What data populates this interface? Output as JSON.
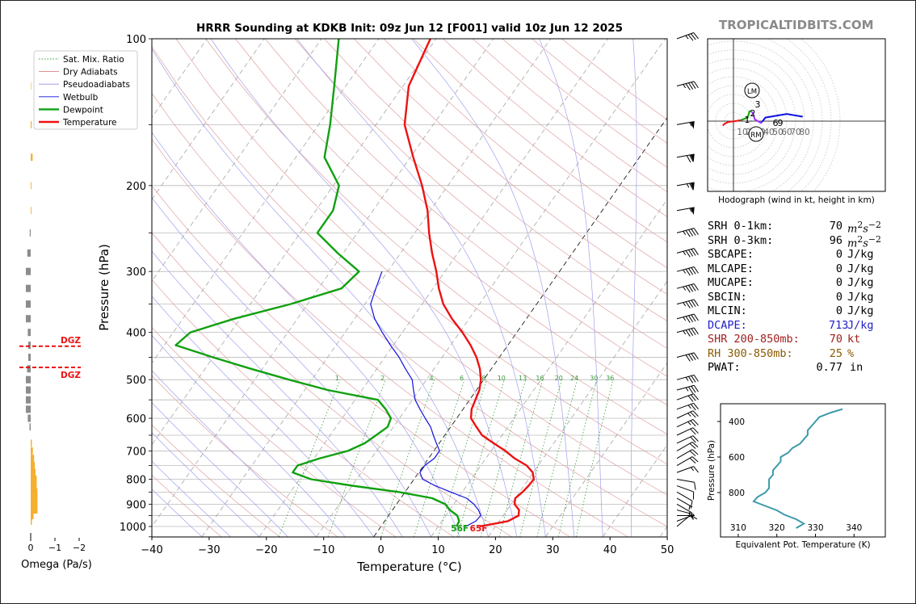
{
  "title": "HRRR Sounding at KDKB Init: 09z Jun 12 [F001] valid 10z Jun 12 2025",
  "watermark": "TROPICALTIDBITS.COM",
  "chart_data": {
    "type": "skew-t",
    "xlabel": "Temperature (°C)",
    "ylabel": "Pressure (hPa)",
    "xlim": [
      -40,
      50
    ],
    "ylim": [
      1050,
      100
    ],
    "log_y": true,
    "x_ticks": [
      "−40",
      "−30",
      "−20",
      "−10",
      "0",
      "10",
      "20",
      "30",
      "40",
      "50"
    ],
    "y_ticks": [
      "100",
      "200",
      "300",
      "400",
      "500",
      "600",
      "700",
      "800",
      "900",
      "1000"
    ],
    "mixing_ratio_labels": [
      "1",
      "2",
      "4",
      "6",
      "8",
      "10",
      "13",
      "16",
      "20",
      "24",
      "30",
      "36"
    ],
    "legend": {
      "position": "upper-left",
      "items": [
        {
          "label": "Sat. Mix. Ratio",
          "color": "#3a9a3a",
          "style": "dotted"
        },
        {
          "label": "Dry Adiabats",
          "color": "#e08080",
          "style": "solid"
        },
        {
          "label": "Pseudoadiabats",
          "color": "#9090e0",
          "style": "solid"
        },
        {
          "label": "Wetbulb",
          "color": "#1010e0",
          "style": "solid"
        },
        {
          "label": "Dewpoint",
          "color": "#10a010",
          "style": "solid"
        },
        {
          "label": "Temperature",
          "color": "#ee1111",
          "style": "solid"
        }
      ]
    },
    "series": [
      {
        "name": "Temperature",
        "color": "#ee1111",
        "profile": [
          [
            1000,
            17.2
          ],
          [
            975,
            21.5
          ],
          [
            950,
            22.7
          ],
          [
            925,
            22.1
          ],
          [
            900,
            20.6
          ],
          [
            875,
            20.0
          ],
          [
            850,
            20.5
          ],
          [
            825,
            20.8
          ],
          [
            800,
            20.9
          ],
          [
            775,
            19.9
          ],
          [
            750,
            18.0
          ],
          [
            725,
            15.0
          ],
          [
            700,
            12.5
          ],
          [
            675,
            9.5
          ],
          [
            650,
            6.5
          ],
          [
            625,
            4.5
          ],
          [
            600,
            2.5
          ],
          [
            575,
            1.5
          ],
          [
            550,
            1.0
          ],
          [
            525,
            0.5
          ],
          [
            500,
            -0.5
          ],
          [
            475,
            -2.0
          ],
          [
            450,
            -4.0
          ],
          [
            425,
            -6.5
          ],
          [
            400,
            -9.5
          ],
          [
            375,
            -13.0
          ],
          [
            350,
            -16.3
          ],
          [
            325,
            -19.0
          ],
          [
            300,
            -21.5
          ],
          [
            275,
            -24.5
          ],
          [
            250,
            -27.5
          ],
          [
            225,
            -30.5
          ],
          [
            200,
            -34.5
          ],
          [
            175,
            -39.5
          ],
          [
            150,
            -45.0
          ],
          [
            125,
            -49.0
          ],
          [
            100,
            -51.0
          ]
        ]
      },
      {
        "name": "Dewpoint",
        "color": "#10a010",
        "profile": [
          [
            1000,
            13.2
          ],
          [
            975,
            13.0
          ],
          [
            950,
            12.0
          ],
          [
            925,
            10.0
          ],
          [
            900,
            8.5
          ],
          [
            875,
            5.5
          ],
          [
            850,
            -1.0
          ],
          [
            825,
            -10.0
          ],
          [
            800,
            -18.0
          ],
          [
            775,
            -22.0
          ],
          [
            750,
            -22.0
          ],
          [
            725,
            -19.0
          ],
          [
            700,
            -15.0
          ],
          [
            675,
            -13.0
          ],
          [
            650,
            -12.0
          ],
          [
            625,
            -11.0
          ],
          [
            600,
            -11.5
          ],
          [
            575,
            -13.5
          ],
          [
            550,
            -16.0
          ],
          [
            525,
            -26.0
          ],
          [
            500,
            -34.0
          ],
          [
            475,
            -42.0
          ],
          [
            450,
            -50.0
          ],
          [
            425,
            -58.0
          ],
          [
            400,
            -57.0
          ],
          [
            375,
            -51.0
          ],
          [
            350,
            -43.0
          ],
          [
            325,
            -36.0
          ],
          [
            300,
            -35.0
          ],
          [
            275,
            -41.0
          ],
          [
            250,
            -47.0
          ],
          [
            225,
            -47.0
          ],
          [
            200,
            -49.0
          ],
          [
            175,
            -55.0
          ],
          [
            150,
            -58.0
          ],
          [
            125,
            -62.0
          ],
          [
            100,
            -67.0
          ]
        ]
      },
      {
        "name": "Wetbulb",
        "color": "#1010e0",
        "profile": [
          [
            1000,
            14.8
          ],
          [
            975,
            15.9
          ],
          [
            950,
            16.1
          ],
          [
            925,
            15.0
          ],
          [
            900,
            13.5
          ],
          [
            875,
            11.5
          ],
          [
            850,
            8.0
          ],
          [
            825,
            4.5
          ],
          [
            800,
            1.5
          ],
          [
            775,
            0.2
          ],
          [
            750,
            0.2
          ],
          [
            725,
            1.0
          ],
          [
            700,
            1.0
          ],
          [
            675,
            -0.5
          ],
          [
            650,
            -2.0
          ],
          [
            625,
            -3.5
          ],
          [
            600,
            -5.5
          ],
          [
            575,
            -7.5
          ],
          [
            550,
            -9.5
          ],
          [
            525,
            -11.0
          ],
          [
            500,
            -12.5
          ],
          [
            475,
            -15.0
          ],
          [
            450,
            -17.5
          ],
          [
            425,
            -20.5
          ],
          [
            400,
            -23.5
          ],
          [
            375,
            -26.5
          ],
          [
            350,
            -29.0
          ],
          [
            325,
            -30.0
          ],
          [
            300,
            -31.0
          ]
        ]
      }
    ],
    "surface_labels": {
      "dewpoint": "56F",
      "temperature": "65F"
    }
  },
  "omega": {
    "xlabel": "Omega (Pa/s)",
    "ticks": [
      "0",
      "−1",
      "−2"
    ],
    "dgz_label": "DGZ",
    "dgz_top_hPa": 427,
    "dgz_bottom_hPa": 472,
    "bars": [
      {
        "p": 975,
        "v": -0.05
      },
      {
        "p": 950,
        "v": -0.12
      },
      {
        "p": 925,
        "v": -0.28
      },
      {
        "p": 900,
        "v": -0.28
      },
      {
        "p": 875,
        "v": -0.28
      },
      {
        "p": 850,
        "v": -0.28
      },
      {
        "p": 825,
        "v": -0.25
      },
      {
        "p": 800,
        "v": -0.25
      },
      {
        "p": 775,
        "v": -0.2
      },
      {
        "p": 750,
        "v": -0.17
      },
      {
        "p": 725,
        "v": -0.14
      },
      {
        "p": 700,
        "v": -0.09
      },
      {
        "p": 675,
        "v": -0.05
      },
      {
        "p": 625,
        "v": 0.05
      },
      {
        "p": 600,
        "v": 0.12
      },
      {
        "p": 575,
        "v": 0.2
      },
      {
        "p": 550,
        "v": 0.2
      },
      {
        "p": 525,
        "v": 0.2
      },
      {
        "p": 500,
        "v": 0.2
      },
      {
        "p": 475,
        "v": 0.15
      },
      {
        "p": 450,
        "v": 0.1
      },
      {
        "p": 425,
        "v": 0.1
      },
      {
        "p": 400,
        "v": 0.12
      },
      {
        "p": 375,
        "v": 0.2
      },
      {
        "p": 350,
        "v": 0.2
      },
      {
        "p": 325,
        "v": 0.2
      },
      {
        "p": 300,
        "v": 0.2
      },
      {
        "p": 275,
        "v": 0.14
      },
      {
        "p": 250,
        "v": 0.04
      },
      {
        "p": 225,
        "v": -0.03
      },
      {
        "p": 200,
        "v": -0.03
      },
      {
        "p": 175,
        "v": -0.08
      },
      {
        "p": 150,
        "v": -0.04
      },
      {
        "p": 125,
        "v": -0.02
      }
    ]
  },
  "hodograph": {
    "caption": "Hodograph (wind in kt, height in km)",
    "ring_labels": [
      "10",
      "20",
      "30",
      "40",
      "50",
      "60",
      "70",
      "80"
    ],
    "height_labels": [
      "1",
      "2",
      "3",
      "6",
      "9"
    ],
    "lm_label": "LM",
    "rm_label": "RM",
    "trace": [
      {
        "color": "#ee1111",
        "pts": [
          [
            -12,
            -5
          ],
          [
            -10,
            -3
          ],
          [
            -6,
            -1
          ],
          [
            2,
            0
          ],
          [
            8,
            1
          ]
        ]
      },
      {
        "color": "#10a010",
        "pts": [
          [
            8,
            1
          ],
          [
            16,
            4
          ],
          [
            18,
            11
          ],
          [
            20,
            11
          ]
        ]
      },
      {
        "color": "#9b30ff",
        "pts": [
          [
            20,
            11
          ],
          [
            22,
            9
          ],
          [
            24,
            2
          ],
          [
            31,
            -2
          ],
          [
            32,
            -1
          ]
        ]
      },
      {
        "color": "#1010e0",
        "pts": [
          [
            32,
            -1
          ],
          [
            36,
            4
          ],
          [
            60,
            8
          ],
          [
            78,
            5
          ]
        ]
      }
    ]
  },
  "stats": [
    {
      "label": "SRH 0-1km:",
      "value": "70",
      "unit": "m2s-2",
      "color": "#000000"
    },
    {
      "label": "SRH 0-3km:",
      "value": "96",
      "unit": "m2s-2",
      "color": "#000000"
    },
    {
      "label": "SBCAPE:",
      "value": "0",
      "unit": "J/kg",
      "color": "#000000"
    },
    {
      "label": "MLCAPE:",
      "value": "0",
      "unit": "J/kg",
      "color": "#000000"
    },
    {
      "label": "MUCAPE:",
      "value": "0",
      "unit": "J/kg",
      "color": "#000000"
    },
    {
      "label": "SBCIN:",
      "value": "0",
      "unit": "J/kg",
      "color": "#000000"
    },
    {
      "label": "MLCIN:",
      "value": "0",
      "unit": "J/kg",
      "color": "#000000"
    },
    {
      "label": "DCAPE:",
      "value": "713",
      "unit": "J/kg",
      "color": "#2020cc"
    },
    {
      "label": "SHR 200-850mb:",
      "value": "70",
      "unit": "kt",
      "color": "#a02020"
    },
    {
      "label": "RH 300-850mb:",
      "value": "25",
      "unit": "%",
      "color": "#8a5a00"
    },
    {
      "label": "PWAT:",
      "value": "0.77",
      "unit": "in",
      "color": "#000000"
    }
  ],
  "theta_e": {
    "xlabel": "Equivalent Pot. Temperature (K)",
    "ylabel": "Pressure (hPa)",
    "x_ticks": [
      "310",
      "320",
      "330",
      "340"
    ],
    "y_ticks": [
      "400",
      "600",
      "800"
    ],
    "color": "#3a9aaa",
    "profile": [
      [
        1000,
        325
      ],
      [
        975,
        327
      ],
      [
        950,
        325
      ],
      [
        925,
        322
      ],
      [
        900,
        320
      ],
      [
        875,
        317
      ],
      [
        850,
        314
      ],
      [
        825,
        315
      ],
      [
        800,
        317
      ],
      [
        775,
        318
      ],
      [
        750,
        318
      ],
      [
        725,
        318
      ],
      [
        700,
        319
      ],
      [
        675,
        319
      ],
      [
        650,
        320
      ],
      [
        625,
        321
      ],
      [
        600,
        321
      ],
      [
        575,
        323
      ],
      [
        550,
        324
      ],
      [
        525,
        326
      ],
      [
        500,
        327
      ],
      [
        475,
        328
      ],
      [
        450,
        328
      ],
      [
        425,
        329
      ],
      [
        400,
        330
      ],
      [
        375,
        331
      ],
      [
        350,
        334
      ],
      [
        330,
        337
      ]
    ]
  },
  "barbs": [
    {
      "p": 1000,
      "spd": 10,
      "dir": 230
    },
    {
      "p": 975,
      "spd": 5,
      "dir": 250
    },
    {
      "p": 950,
      "spd": 5,
      "dir": 270
    },
    {
      "p": 925,
      "spd": 5,
      "dir": 285
    },
    {
      "p": 900,
      "spd": 5,
      "dir": 300
    },
    {
      "p": 875,
      "spd": 5,
      "dir": 300
    },
    {
      "p": 850,
      "spd": 10,
      "dir": 300
    },
    {
      "p": 825,
      "spd": 10,
      "dir": 290
    },
    {
      "p": 800,
      "spd": 10,
      "dir": 280
    },
    {
      "p": 775,
      "spd": 15,
      "dir": 250
    },
    {
      "p": 750,
      "spd": 20,
      "dir": 240
    },
    {
      "p": 725,
      "spd": 20,
      "dir": 240
    },
    {
      "p": 700,
      "spd": 20,
      "dir": 240
    },
    {
      "p": 675,
      "spd": 20,
      "dir": 245
    },
    {
      "p": 650,
      "spd": 20,
      "dir": 245
    },
    {
      "p": 625,
      "spd": 25,
      "dir": 245
    },
    {
      "p": 600,
      "spd": 25,
      "dir": 245
    },
    {
      "p": 575,
      "spd": 25,
      "dir": 250
    },
    {
      "p": 550,
      "spd": 30,
      "dir": 250
    },
    {
      "p": 525,
      "spd": 35,
      "dir": 255
    },
    {
      "p": 500,
      "spd": 35,
      "dir": 255
    },
    {
      "p": 450,
      "spd": 40,
      "dir": 255
    },
    {
      "p": 400,
      "spd": 45,
      "dir": 255
    },
    {
      "p": 375,
      "spd": 45,
      "dir": 255
    },
    {
      "p": 350,
      "spd": 45,
      "dir": 255
    },
    {
      "p": 325,
      "spd": 45,
      "dir": 255
    },
    {
      "p": 300,
      "spd": 45,
      "dir": 255
    },
    {
      "p": 275,
      "spd": 45,
      "dir": 255
    },
    {
      "p": 250,
      "spd": 45,
      "dir": 255
    },
    {
      "p": 225,
      "spd": 55,
      "dir": 260
    },
    {
      "p": 200,
      "spd": 65,
      "dir": 260
    },
    {
      "p": 175,
      "spd": 70,
      "dir": 260
    },
    {
      "p": 150,
      "spd": 55,
      "dir": 260
    },
    {
      "p": 125,
      "spd": 45,
      "dir": 255
    },
    {
      "p": 100,
      "spd": 35,
      "dir": 250
    }
  ]
}
